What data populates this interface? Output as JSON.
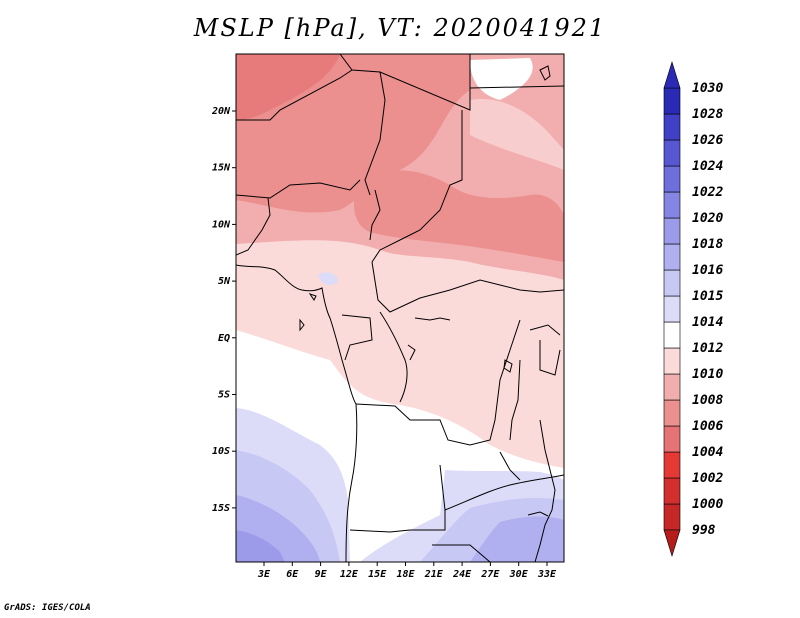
{
  "title": "MSLP [hPa], VT: 2020041921",
  "footer": "GrADS: IGES/COLA",
  "axes": {
    "lon_labels": [
      "3E",
      "6E",
      "9E",
      "12E",
      "15E",
      "18E",
      "21E",
      "24E",
      "27E",
      "30E",
      "33E"
    ],
    "lat_labels": [
      "20N",
      "15N",
      "10N",
      "5N",
      "EQ",
      "5S",
      "10S",
      "15S"
    ]
  },
  "colorbar": {
    "levels": [
      "998",
      "1000",
      "1002",
      "1004",
      "1006",
      "1008",
      "1010",
      "1012",
      "1014",
      "1015",
      "1016",
      "1018",
      "1020",
      "1022",
      "1024",
      "1026",
      "1028",
      "1030"
    ],
    "colors": [
      "#b71c1c",
      "#c62828",
      "#d32f2f",
      "#e53935",
      "#e57373",
      "#ec8f8f",
      "#f2aeae",
      "#fbdada",
      "#ffffff",
      "#dcdcf9",
      "#c8c8f5",
      "#b0b0f0",
      "#9b9bea",
      "#8585e4",
      "#6e6edc",
      "#5757d2",
      "#4040c6",
      "#2a2ab6"
    ]
  }
}
